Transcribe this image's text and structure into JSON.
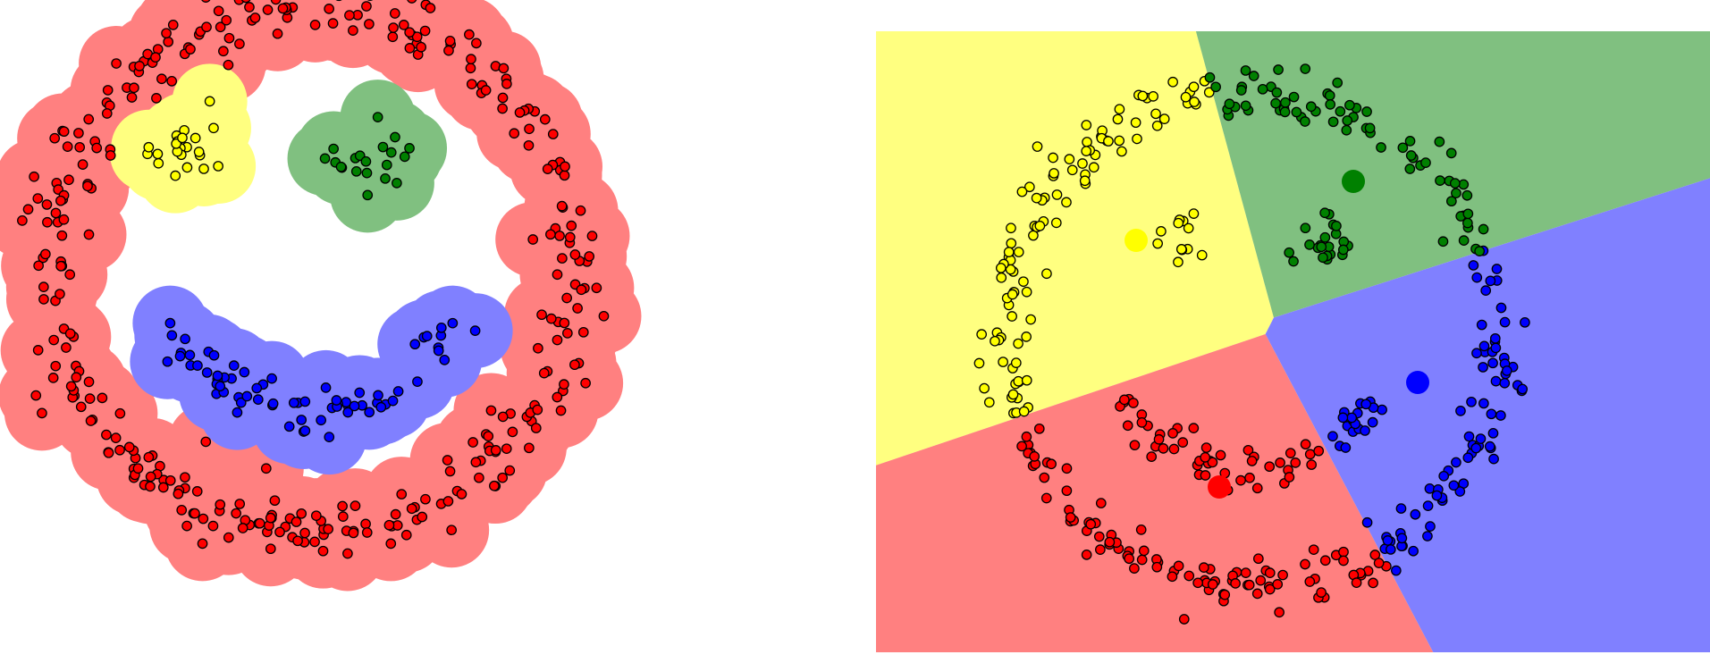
{
  "colors": {
    "red": "#ff0000",
    "yellow": "#ffff00",
    "green": "#008000",
    "blue": "#0000ff",
    "halo_red": "#ff8080",
    "halo_yellow": "#ffff80",
    "halo_green": "#80c080",
    "halo_blue": "#8080ff"
  },
  "chart_data": [
    {
      "type": "scatter",
      "title": "",
      "xlabel": "",
      "ylabel": "",
      "grid": false,
      "axes": false,
      "xlim": [
        -1.0,
        1.0
      ],
      "ylim": [
        -1.0,
        1.0
      ],
      "clusters": [
        {
          "color": "red",
          "shape": "ring",
          "center": [
            0.0,
            0.0
          ],
          "radius": 0.92,
          "spread": 0.05,
          "count": 340
        },
        {
          "color": "yellow",
          "shape": "blob",
          "center": [
            -0.45,
            0.42
          ],
          "spread": 0.07,
          "count": 22
        },
        {
          "color": "green",
          "shape": "blob",
          "center": [
            0.25,
            0.38
          ],
          "spread": 0.08,
          "count": 20
        },
        {
          "color": "blue",
          "shape": "arc",
          "center": [
            0.0,
            0.05
          ],
          "radius": 0.55,
          "angle_range": [
            -155,
            -25
          ],
          "spread": 0.04,
          "count": 70
        }
      ]
    },
    {
      "type": "scatter",
      "title": "",
      "xlabel": "",
      "ylabel": "",
      "grid": false,
      "axes": false,
      "xlim": [
        -1.0,
        1.0
      ],
      "ylim": [
        -1.0,
        1.0
      ],
      "background": "voronoi-regions",
      "centroids": [
        {
          "color": "yellow",
          "x": -0.43,
          "y": 0.37
        },
        {
          "color": "green",
          "x": 0.38,
          "y": 0.59
        },
        {
          "color": "red",
          "x": -0.12,
          "y": -0.55
        },
        {
          "color": "blue",
          "x": 0.62,
          "y": -0.16
        }
      ],
      "clusters": [
        {
          "shape": "ring",
          "center": [
            0.0,
            0.0
          ],
          "radius": 0.92,
          "spread": 0.05,
          "count": 340
        },
        {
          "shape": "blob",
          "center": [
            -0.28,
            0.37
          ],
          "spread": 0.05,
          "count": 12
        },
        {
          "shape": "blob",
          "center": [
            0.27,
            0.37
          ],
          "spread": 0.05,
          "count": 22
        },
        {
          "shape": "arc",
          "center": [
            0.0,
            0.05
          ],
          "radius": 0.55,
          "angle_range": [
            -150,
            -30
          ],
          "spread": 0.04,
          "count": 70
        }
      ]
    }
  ]
}
